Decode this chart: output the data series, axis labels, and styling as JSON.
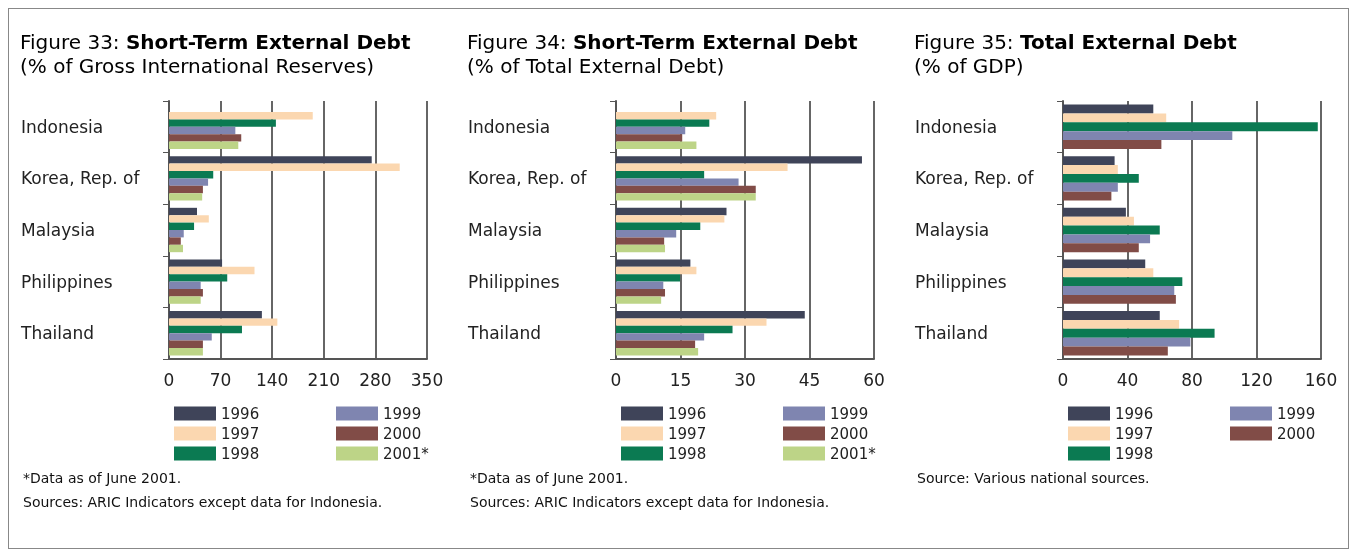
{
  "chart_data": [
    {
      "type": "bar",
      "orientation": "horizontal",
      "title": "Figure 33: Short-Term External Debt",
      "subtitle": "(% of Gross International Reserves)",
      "categories": [
        "Indonesia",
        "Korea, Rep. of",
        "Malaysia",
        "Philippines",
        "Thailand"
      ],
      "series": [
        {
          "name": "1996",
          "color": "#3f4459",
          "values": [
            null,
            275,
            38,
            72,
            126
          ]
        },
        {
          "name": "1997",
          "color": "#fbd7b0",
          "values": [
            195,
            313,
            54,
            116,
            147
          ]
        },
        {
          "name": "1998",
          "color": "#0b7a52",
          "values": [
            145,
            60,
            34,
            79,
            99
          ]
        },
        {
          "name": "1999",
          "color": "#7f85b0",
          "values": [
            90,
            53,
            20,
            43,
            58
          ]
        },
        {
          "name": "2000",
          "color": "#814c47",
          "values": [
            98,
            46,
            16,
            46,
            46
          ]
        },
        {
          "name": "2001*",
          "color": "#bdd487",
          "values": [
            94,
            45,
            19,
            43,
            46
          ]
        }
      ],
      "xlim": [
        0,
        350
      ],
      "xticks": [
        0,
        70,
        140,
        210,
        280,
        350
      ],
      "grid": "x",
      "legend": "bottom",
      "annotations": [
        "*Data as of June 2001.",
        "Sources: ARIC Indicators except data for Indonesia."
      ]
    },
    {
      "type": "bar",
      "orientation": "horizontal",
      "title": "Figure 34: Short-Term External Debt",
      "subtitle": "(% of Total External Debt)",
      "categories": [
        "Indonesia",
        "Korea, Rep. of",
        "Malaysia",
        "Philippines",
        "Thailand"
      ],
      "series": [
        {
          "name": "1996",
          "color": "#3f4459",
          "values": [
            null,
            57.2,
            25.7,
            17.3,
            43.9
          ]
        },
        {
          "name": "1997",
          "color": "#fbd7b0",
          "values": [
            23.3,
            39.9,
            25.2,
            18.7,
            35.0
          ]
        },
        {
          "name": "1998",
          "color": "#0b7a52",
          "values": [
            21.7,
            20.5,
            19.6,
            14.9,
            27.1
          ]
        },
        {
          "name": "1999",
          "color": "#7f85b0",
          "values": [
            16.1,
            28.5,
            14.0,
            11.0,
            20.5
          ]
        },
        {
          "name": "2000",
          "color": "#814c47",
          "values": [
            15.4,
            32.5,
            11.2,
            11.4,
            18.4
          ]
        },
        {
          "name": "2001*",
          "color": "#bdd487",
          "values": [
            18.7,
            32.5,
            11.4,
            10.5,
            19.1
          ]
        }
      ],
      "xlim": [
        0,
        60
      ],
      "xticks": [
        0,
        15,
        30,
        45,
        60
      ],
      "grid": "x",
      "legend": "bottom",
      "annotations": [
        "*Data as of June 2001.",
        "Sources: ARIC Indicators except data for Indonesia."
      ]
    },
    {
      "type": "bar",
      "orientation": "horizontal",
      "title": "Figure 35: Total External Debt",
      "subtitle": "(% of GDP)",
      "categories": [
        "Indonesia",
        "Korea, Rep. of",
        "Malaysia",
        "Philippines",
        "Thailand"
      ],
      "series": [
        {
          "name": "1996",
          "color": "#3f4459",
          "values": [
            56,
            32,
            39,
            51,
            60
          ]
        },
        {
          "name": "1997",
          "color": "#fbd7b0",
          "values": [
            64,
            34,
            44,
            56,
            72
          ]
        },
        {
          "name": "1998",
          "color": "#0b7a52",
          "values": [
            158,
            47,
            60,
            74,
            94
          ]
        },
        {
          "name": "1999",
          "color": "#7f85b0",
          "values": [
            105,
            34,
            54,
            69,
            79
          ]
        },
        {
          "name": "2000",
          "color": "#814c47",
          "values": [
            61,
            30,
            47,
            70,
            65
          ]
        }
      ],
      "xlim": [
        0,
        160
      ],
      "xticks": [
        0,
        40,
        80,
        120,
        160
      ],
      "grid": "x",
      "legend": "bottom",
      "annotations": [
        "Source: Various national sources."
      ]
    }
  ]
}
